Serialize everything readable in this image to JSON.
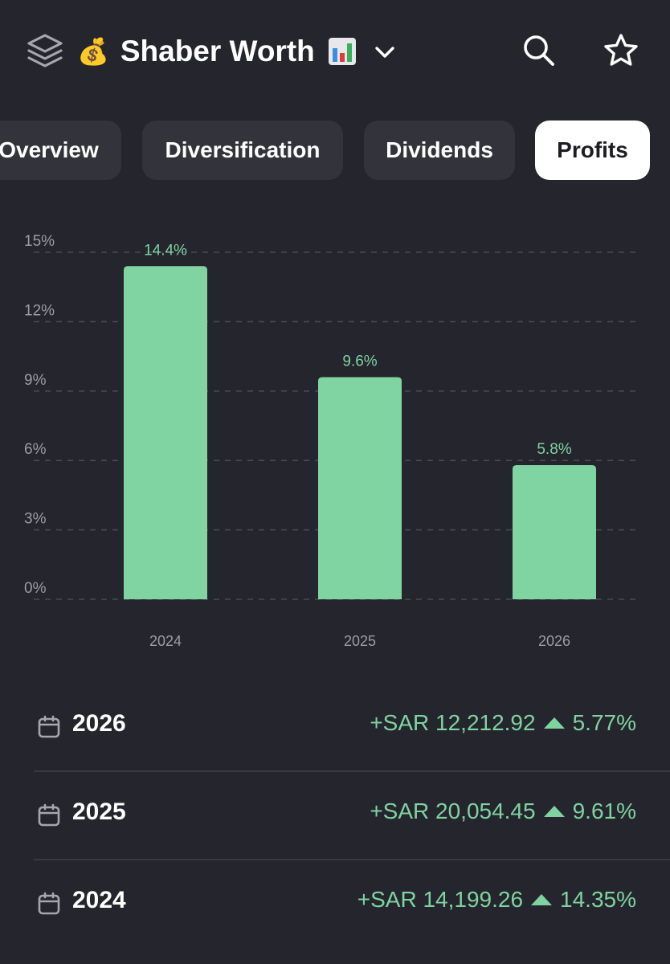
{
  "header": {
    "title": "Shaber Worth",
    "title_prefix_emoji": "💰",
    "title_suffix_icon": "bar-chart-emoji-icon",
    "icons": [
      "layers-icon",
      "chevron-down-icon",
      "search-icon",
      "star-icon"
    ]
  },
  "tabs": [
    {
      "label": "Overview",
      "active": false
    },
    {
      "label": "Diversification",
      "active": false
    },
    {
      "label": "Dividends",
      "active": false
    },
    {
      "label": "Profits",
      "active": true
    }
  ],
  "chart_data": {
    "type": "bar",
    "categories": [
      "2024",
      "2025",
      "2026"
    ],
    "values": [
      14.4,
      9.6,
      5.8
    ],
    "value_labels": [
      "14.4%",
      "9.6%",
      "5.8%"
    ],
    "y_ticks": [
      "0%",
      "3%",
      "6%",
      "9%",
      "12%",
      "15%"
    ],
    "ylim": [
      0,
      15
    ],
    "grid": true,
    "bar_color": "#80d4a1",
    "label_color": "#7fd3a0"
  },
  "rows": [
    {
      "year": "2026",
      "amount": "+SAR 12,212.92",
      "percent": "5.77%"
    },
    {
      "year": "2025",
      "amount": "+SAR 20,054.45",
      "percent": "9.61%"
    },
    {
      "year": "2024",
      "amount": "+SAR 14,199.26",
      "percent": "14.35%"
    }
  ],
  "colors": {
    "background": "#25252d",
    "tab_bg": "#33333c",
    "positive": "#7fd3a0"
  }
}
